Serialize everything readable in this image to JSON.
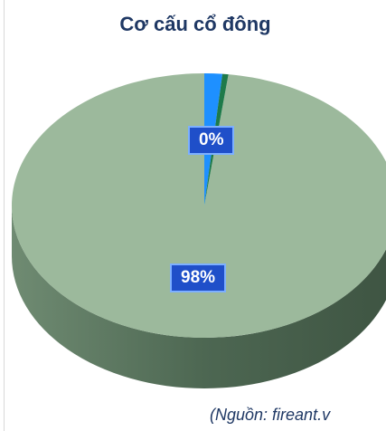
{
  "title": "Cơ cấu cổ đông",
  "source_note": "(Nguồn: fireant.v",
  "chart_data": {
    "type": "pie",
    "style": "3d",
    "title": "Cơ cấu cổ đông",
    "slices": [
      {
        "value": 98,
        "label": "98%",
        "color": "#9cb99c",
        "side_color": "#55705a"
      },
      {
        "value": 1.5,
        "label": "",
        "color": "#1e90ff",
        "side_color": "#1160b0"
      },
      {
        "value": 0.5,
        "label": "0%",
        "color": "#1e7a4a",
        "side_color": "#124d30"
      }
    ]
  }
}
